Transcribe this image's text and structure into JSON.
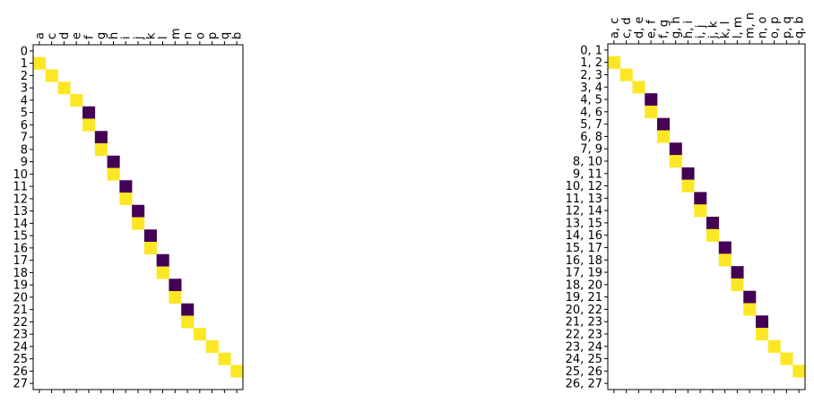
{
  "colors": {
    "low": "#440154",
    "high": "#fde725",
    "background": "#ffffff",
    "axis": "#000000"
  },
  "chart_data": [
    {
      "type": "heatmap",
      "title": "",
      "xlabel": "",
      "ylabel": "",
      "x_tick_position": "top",
      "xticks": [
        "a",
        "c",
        "d",
        "e",
        "f",
        "g",
        "h",
        "i",
        "j",
        "k",
        "l",
        "m",
        "n",
        "o",
        "p",
        "q",
        "b"
      ],
      "yticks": [
        "0",
        "1",
        "2",
        "3",
        "4",
        "5",
        "6",
        "7",
        "8",
        "9",
        "10",
        "11",
        "12",
        "13",
        "14",
        "15",
        "16",
        "17",
        "18",
        "19",
        "20",
        "21",
        "22",
        "23",
        "24",
        "25",
        "26",
        "27"
      ],
      "value_range": [
        -1,
        1
      ],
      "cells": [
        {
          "row": 1,
          "col": 0,
          "value": 1
        },
        {
          "row": 2,
          "col": 1,
          "value": 1
        },
        {
          "row": 3,
          "col": 2,
          "value": 1
        },
        {
          "row": 4,
          "col": 3,
          "value": 1
        },
        {
          "row": 5,
          "col": 4,
          "value": -1
        },
        {
          "row": 6,
          "col": 4,
          "value": 1
        },
        {
          "row": 7,
          "col": 5,
          "value": -1
        },
        {
          "row": 8,
          "col": 5,
          "value": 1
        },
        {
          "row": 9,
          "col": 6,
          "value": -1
        },
        {
          "row": 10,
          "col": 6,
          "value": 1
        },
        {
          "row": 11,
          "col": 7,
          "value": -1
        },
        {
          "row": 12,
          "col": 7,
          "value": 1
        },
        {
          "row": 13,
          "col": 8,
          "value": -1
        },
        {
          "row": 14,
          "col": 8,
          "value": 1
        },
        {
          "row": 15,
          "col": 9,
          "value": -1
        },
        {
          "row": 16,
          "col": 9,
          "value": 1
        },
        {
          "row": 17,
          "col": 10,
          "value": -1
        },
        {
          "row": 18,
          "col": 10,
          "value": 1
        },
        {
          "row": 19,
          "col": 11,
          "value": -1
        },
        {
          "row": 20,
          "col": 11,
          "value": 1
        },
        {
          "row": 21,
          "col": 12,
          "value": -1
        },
        {
          "row": 22,
          "col": 12,
          "value": 1
        },
        {
          "row": 23,
          "col": 13,
          "value": 1
        },
        {
          "row": 24,
          "col": 14,
          "value": 1
        },
        {
          "row": 25,
          "col": 15,
          "value": 1
        },
        {
          "row": 26,
          "col": 16,
          "value": 1
        }
      ]
    },
    {
      "type": "heatmap",
      "title": "",
      "xlabel": "",
      "ylabel": "",
      "x_tick_position": "top",
      "xticks": [
        "a, c",
        "c, d",
        "d, e",
        "e, f",
        "f, g",
        "g, h",
        "h, i",
        "i, j",
        "j, k",
        "k, l",
        "l, m",
        "m, n",
        "n, o",
        "o, p",
        "p, q",
        "q, b"
      ],
      "yticks": [
        "0, 1",
        "1, 2",
        "2, 3",
        "3, 4",
        "4, 5",
        "4, 6",
        "5, 7",
        "6, 8",
        "7, 9",
        "8, 10",
        "9, 11",
        "10, 12",
        "11, 13",
        "12, 14",
        "13, 15",
        "14, 16",
        "15, 17",
        "16, 18",
        "17, 19",
        "18, 20",
        "19, 21",
        "20, 22",
        "21, 23",
        "22, 23",
        "23, 24",
        "24, 25",
        "25, 26",
        "26, 27"
      ],
      "value_range": [
        -1,
        1
      ],
      "cells": [
        {
          "row": 1,
          "col": 0,
          "value": 1
        },
        {
          "row": 2,
          "col": 1,
          "value": 1
        },
        {
          "row": 3,
          "col": 2,
          "value": 1
        },
        {
          "row": 4,
          "col": 3,
          "value": -1
        },
        {
          "row": 5,
          "col": 3,
          "value": 1
        },
        {
          "row": 6,
          "col": 4,
          "value": -1
        },
        {
          "row": 7,
          "col": 4,
          "value": 1
        },
        {
          "row": 8,
          "col": 5,
          "value": -1
        },
        {
          "row": 9,
          "col": 5,
          "value": 1
        },
        {
          "row": 10,
          "col": 6,
          "value": -1
        },
        {
          "row": 11,
          "col": 6,
          "value": 1
        },
        {
          "row": 12,
          "col": 7,
          "value": -1
        },
        {
          "row": 13,
          "col": 7,
          "value": 1
        },
        {
          "row": 14,
          "col": 8,
          "value": -1
        },
        {
          "row": 15,
          "col": 8,
          "value": 1
        },
        {
          "row": 16,
          "col": 9,
          "value": -1
        },
        {
          "row": 17,
          "col": 9,
          "value": 1
        },
        {
          "row": 18,
          "col": 10,
          "value": -1
        },
        {
          "row": 19,
          "col": 10,
          "value": 1
        },
        {
          "row": 20,
          "col": 11,
          "value": -1
        },
        {
          "row": 21,
          "col": 11,
          "value": 1
        },
        {
          "row": 22,
          "col": 12,
          "value": -1
        },
        {
          "row": 23,
          "col": 12,
          "value": 1
        },
        {
          "row": 24,
          "col": 13,
          "value": 1
        },
        {
          "row": 25,
          "col": 14,
          "value": 1
        },
        {
          "row": 26,
          "col": 15,
          "value": 1
        }
      ]
    }
  ]
}
